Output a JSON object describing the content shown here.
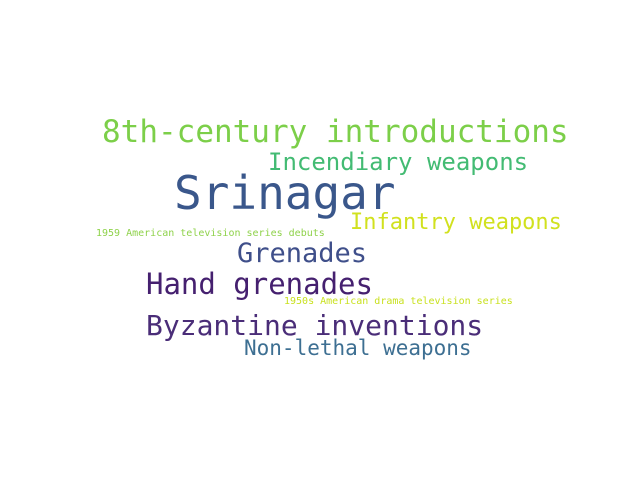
{
  "words": [
    {
      "text": "8th-century introductions",
      "color": "#7ccf49"
    },
    {
      "text": "Incendiary weapons",
      "color": "#43bb73"
    },
    {
      "text": "Srinagar",
      "color": "#3a578b"
    },
    {
      "text": "Infantry weapons",
      "color": "#d1e11e"
    },
    {
      "text": "1959 American television series debuts",
      "color": "#8fd24b"
    },
    {
      "text": "Grenades",
      "color": "#3f4f8a"
    },
    {
      "text": "Hand grenades",
      "color": "#45206f"
    },
    {
      "text": "1950s American drama television series",
      "color": "#c9e11f"
    },
    {
      "text": "Byzantine inventions",
      "color": "#4a2d78"
    },
    {
      "text": "Non-lethal weapons",
      "color": "#3d6f92"
    }
  ]
}
